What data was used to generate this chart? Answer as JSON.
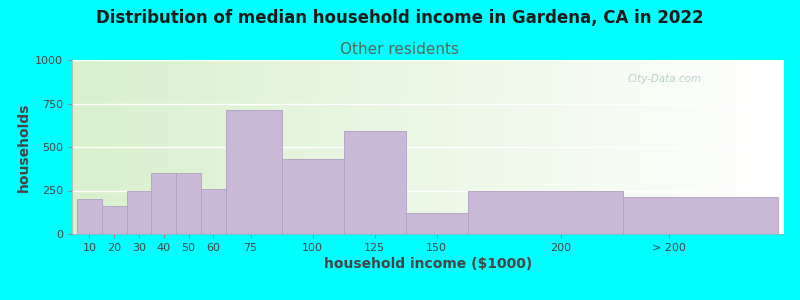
{
  "title": "Distribution of median household income in Gardena, CA in 2022",
  "subtitle": "Other residents",
  "xlabel": "household income ($1000)",
  "ylabel": "households",
  "bg_color": "#00FFFF",
  "bar_color": "#c9b8d8",
  "bar_edge_color": "#b0a0c0",
  "ylim": [
    0,
    1000
  ],
  "yticks": [
    0,
    250,
    500,
    750,
    1000
  ],
  "categories": [
    "10",
    "20",
    "30",
    "40",
    "50",
    "60",
    "75",
    "100",
    "125",
    "150",
    "200",
    "> 200"
  ],
  "values": [
    200,
    160,
    250,
    350,
    350,
    260,
    710,
    430,
    590,
    120,
    245,
    210
  ],
  "bar_lefts": [
    5,
    15,
    25,
    35,
    45,
    55,
    65,
    87.5,
    112.5,
    137.5,
    162.5,
    225
  ],
  "bar_widths": [
    10,
    10,
    10,
    10,
    10,
    10,
    22.5,
    25,
    25,
    25,
    62.5,
    62.5
  ],
  "xtick_positions": [
    10,
    20,
    30,
    40,
    50,
    60,
    75,
    100,
    125,
    150,
    200,
    243.75
  ],
  "watermark": "City-Data.com",
  "title_fontsize": 12,
  "subtitle_fontsize": 11,
  "subtitle_color": "#556655",
  "axis_label_fontsize": 10,
  "tick_label_fontsize": 8,
  "xlim": [
    3,
    290
  ]
}
